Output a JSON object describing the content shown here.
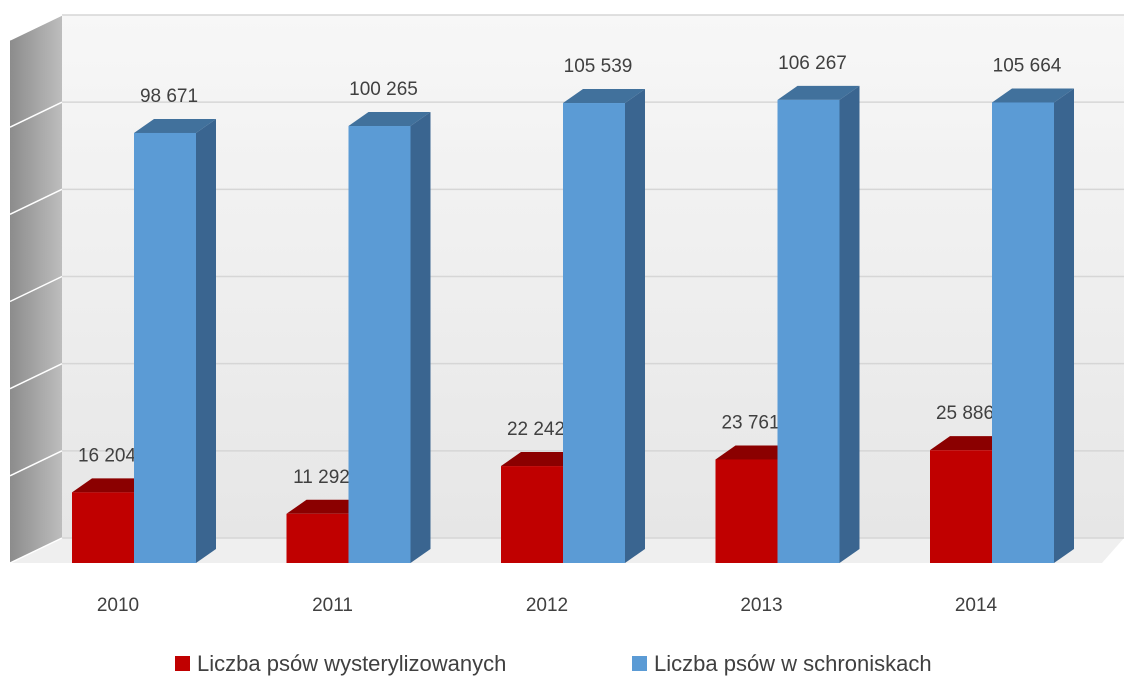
{
  "chart_data": {
    "type": "bar3d",
    "categories": [
      "2010",
      "2011",
      "2012",
      "2013",
      "2014"
    ],
    "series": [
      {
        "name": "Liczba psów wysterylizowanych",
        "color": "#c00000",
        "values": [
          16204,
          11292,
          22242,
          23761,
          25886
        ],
        "value_labels": [
          "16 204",
          "11 292",
          "22 242",
          "23 761",
          "25 886"
        ]
      },
      {
        "name": "Liczba psów w schroniskach",
        "color": "#5b9bd5",
        "values": [
          98671,
          100265,
          105539,
          106267,
          105664
        ],
        "value_labels": [
          "98 671",
          "100 265",
          "105 539",
          "106 267",
          "105 664"
        ]
      }
    ],
    "ylim": [
      0,
      120000
    ],
    "yticks": [
      0,
      20000,
      40000,
      60000,
      80000,
      100000,
      120000
    ],
    "grid": true,
    "legend": "bottom"
  }
}
